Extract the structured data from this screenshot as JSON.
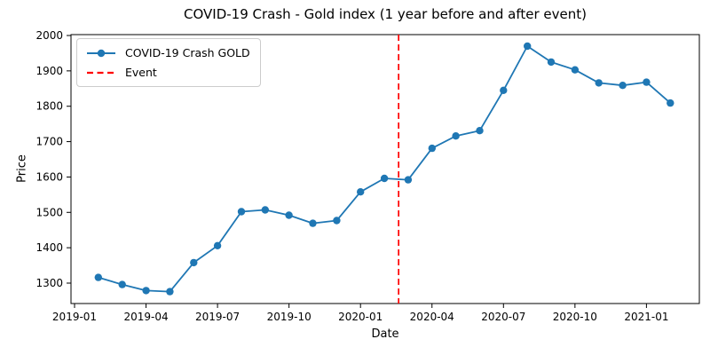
{
  "chart_data": {
    "type": "line",
    "title": "COVID-19 Crash - Gold index (1 year before and after event)",
    "xlabel": "Date",
    "ylabel": "Price",
    "grid": false,
    "legend_position": "upper left",
    "x": [
      "2019-02",
      "2019-03",
      "2019-04",
      "2019-05",
      "2019-06",
      "2019-07",
      "2019-08",
      "2019-09",
      "2019-10",
      "2019-11",
      "2019-12",
      "2020-01",
      "2020-02",
      "2020-03",
      "2020-04",
      "2020-05",
      "2020-06",
      "2020-07",
      "2020-08",
      "2020-09",
      "2020-10",
      "2020-11",
      "2020-12",
      "2021-01",
      "2021-02"
    ],
    "series": [
      {
        "name": "COVID-19 Crash GOLD",
        "color": "#1f77b4",
        "marker": "circle",
        "values": [
          1316,
          1296,
          1279,
          1276,
          1358,
          1406,
          1502,
          1507,
          1492,
          1469,
          1477,
          1558,
          1596,
          1592,
          1681,
          1716,
          1731,
          1845,
          1970,
          1925,
          1903,
          1866,
          1859,
          1868,
          1809
        ]
      }
    ],
    "event_line": {
      "label": "Event",
      "date": "2020-02-19",
      "color": "#ff0000",
      "style": "dashed"
    },
    "xticks": [
      "2019-01",
      "2019-04",
      "2019-07",
      "2019-10",
      "2020-01",
      "2020-04",
      "2020-07",
      "2020-10",
      "2021-01"
    ],
    "yticks": [
      1300,
      1400,
      1500,
      1600,
      1700,
      1800,
      1900,
      2000
    ],
    "ylim": [
      1242,
      2001
    ],
    "axis_color": "#000000",
    "background": "#ffffff"
  }
}
